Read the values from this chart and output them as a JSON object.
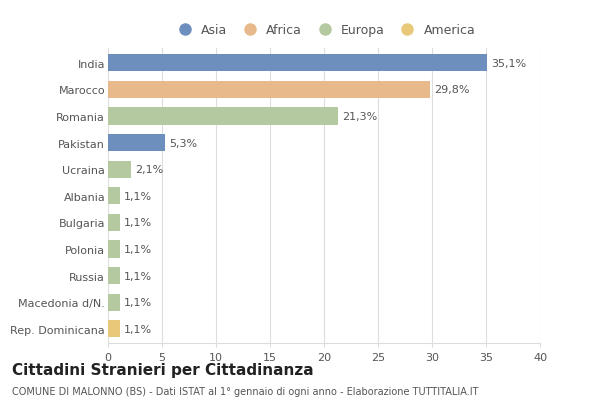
{
  "countries": [
    "India",
    "Marocco",
    "Romania",
    "Pakistan",
    "Ucraina",
    "Albania",
    "Bulgaria",
    "Polonia",
    "Russia",
    "Macedonia d/N.",
    "Rep. Dominicana"
  ],
  "values": [
    35.1,
    29.8,
    21.3,
    5.3,
    2.1,
    1.1,
    1.1,
    1.1,
    1.1,
    1.1,
    1.1
  ],
  "labels": [
    "35,1%",
    "29,8%",
    "21,3%",
    "5,3%",
    "2,1%",
    "1,1%",
    "1,1%",
    "1,1%",
    "1,1%",
    "1,1%",
    "1,1%"
  ],
  "colors": [
    "#6d8fbd",
    "#e8b98a",
    "#b5c9a0",
    "#6d8fbd",
    "#b5c9a0",
    "#b5c9a0",
    "#b5c9a0",
    "#b5c9a0",
    "#b5c9a0",
    "#b5c9a0",
    "#e8c97a"
  ],
  "legend_labels": [
    "Asia",
    "Africa",
    "Europa",
    "America"
  ],
  "legend_colors": [
    "#6d8fbd",
    "#e8b98a",
    "#b5c9a0",
    "#e8c97a"
  ],
  "title": "Cittadini Stranieri per Cittadinanza",
  "subtitle": "COMUNE DI MALONNO (BS) - Dati ISTAT al 1° gennaio di ogni anno - Elaborazione TUTTITALIA.IT",
  "xlim": [
    0,
    40
  ],
  "xticks": [
    0,
    5,
    10,
    15,
    20,
    25,
    30,
    35,
    40
  ],
  "bg_color": "#ffffff",
  "grid_color": "#dddddd",
  "bar_height": 0.65,
  "label_fontsize": 8,
  "tick_fontsize": 8,
  "title_fontsize": 11,
  "subtitle_fontsize": 7
}
